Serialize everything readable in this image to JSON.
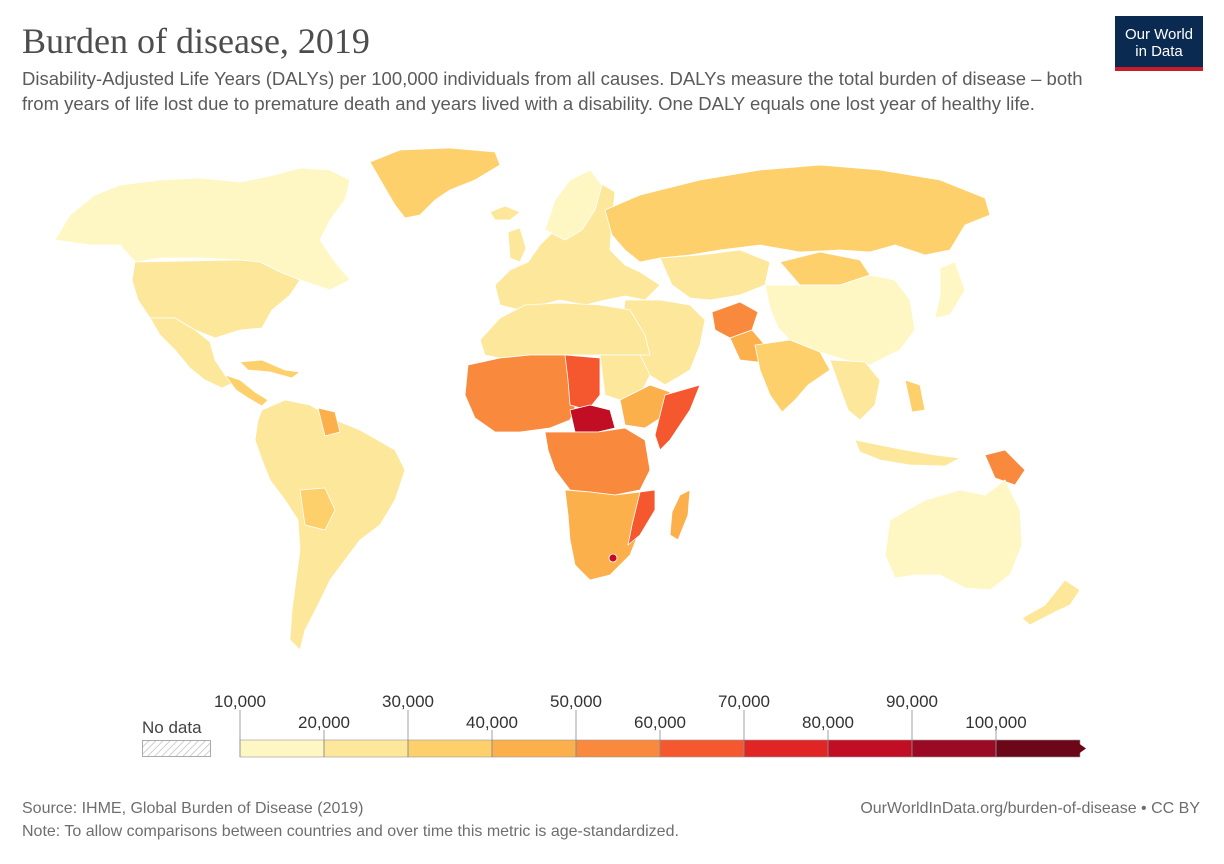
{
  "header": {
    "title": "Burden of disease, 2019",
    "subtitle": "Disability-Adjusted Life Years (DALYs) per 100,000 individuals from all causes. DALYs measure the total burden of disease – both from years of life lost due to premature death and years lived with a disability. One DALY equals one lost year of healthy life.",
    "logo_line1": "Our World",
    "logo_line2": "in Data"
  },
  "legend": {
    "no_data_label": "No data",
    "top_ticks": [
      "10,000",
      "30,000",
      "50,000",
      "70,000",
      "90,000"
    ],
    "bottom_ticks": [
      "20,000",
      "40,000",
      "60,000",
      "80,000",
      "100,000"
    ],
    "colors": [
      "#fef7c4",
      "#fde79a",
      "#fdd06b",
      "#fcb04c",
      "#f98a3d",
      "#f5582f",
      "#e12424",
      "#c20e24",
      "#9b0a24",
      "#6b0718"
    ]
  },
  "map": {
    "bins": [
      "#fef7c4",
      "#fde79a",
      "#fdd06b",
      "#fcb04c",
      "#f98a3d",
      "#f5582f",
      "#e12424",
      "#c20e24"
    ],
    "no_data_color": "#e6e6e6"
  },
  "footer": {
    "source": "Source: IHME, Global Burden of Disease (2019)",
    "note": "Note: To allow comparisons between countries and over time this metric is age-standardized.",
    "url": "OurWorldInData.org/burden-of-disease • CC BY"
  }
}
